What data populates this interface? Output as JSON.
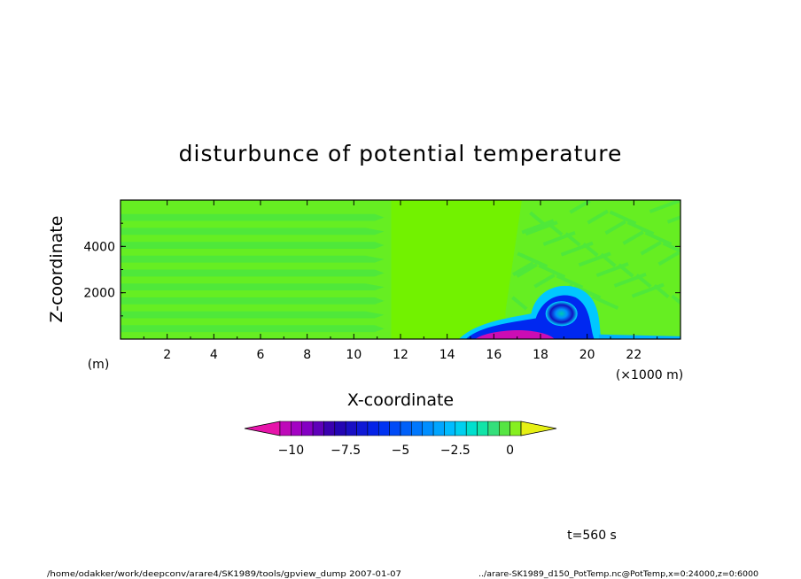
{
  "chart_data": {
    "type": "heatmap",
    "title": "disturbunce of potential temperature",
    "xlabel": "X-coordinate",
    "ylabel": "Z-coordinate",
    "x_unit": "(×1000 m)",
    "y_unit": "(m)",
    "xlim": [
      0,
      24
    ],
    "ylim": [
      0,
      6000
    ],
    "x_ticks": [
      "2",
      "4",
      "6",
      "8",
      "10",
      "12",
      "14",
      "16",
      "18",
      "20",
      "22"
    ],
    "x_tick_values": [
      2,
      4,
      6,
      8,
      10,
      12,
      14,
      16,
      18,
      20,
      22
    ],
    "y_ticks": [
      "2000",
      "4000"
    ],
    "y_tick_values": [
      2000,
      4000
    ],
    "colorbar": {
      "min": -11,
      "max": 1,
      "step": 0.5,
      "extend": "both",
      "tick_labels": [
        "−10",
        "−7.5",
        "−5",
        "−2.5",
        "0"
      ],
      "tick_values": [
        -10,
        -7.5,
        -5,
        -2.5,
        0
      ]
    },
    "cold_pool": {
      "head_x": 18.9,
      "head_z": 900,
      "front_x": 20.5,
      "min_value": -10.5
    }
  },
  "annotations": {
    "time": "t=560 s",
    "footer_left": "/home/odakker/work/deepconv/arare4/SK1989/tools/gpview_dump  2007-01-07",
    "footer_right": "../arare-SK1989_d150_PotTemp.nc@PotTemp,x=0:24000,z=0:6000"
  }
}
